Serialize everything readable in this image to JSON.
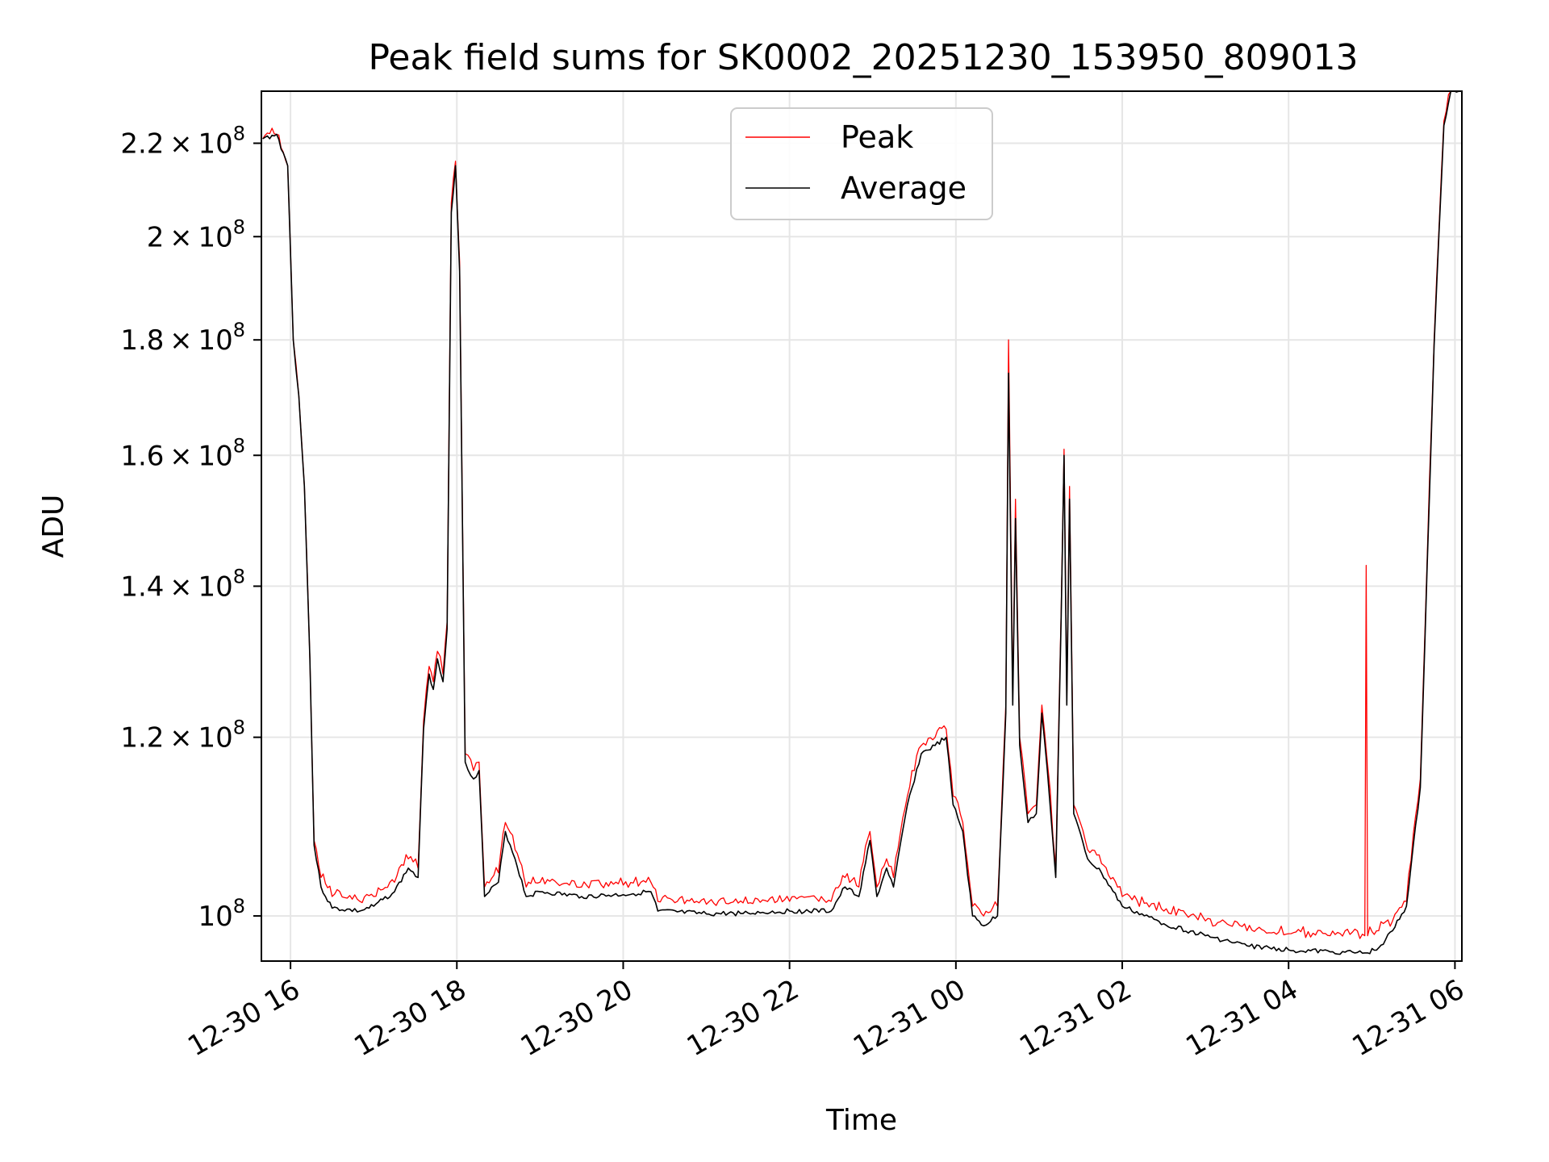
{
  "chart_data": {
    "type": "line",
    "title": "Peak field sums for SK0002_20251230_153950_809013",
    "xlabel": "Time",
    "ylabel": "ADU",
    "yscale": "log",
    "xlim": [
      "2025-12-30 15:39",
      "2025-12-31 06:05"
    ],
    "ylim": [
      95500000.0,
      232000000.0
    ],
    "grid": true,
    "legend_position": "top-center",
    "x_ticks": [
      {
        "value": "2025-12-30 16:00",
        "label": "12-30 16"
      },
      {
        "value": "2025-12-30 18:00",
        "label": "12-30 18"
      },
      {
        "value": "2025-12-30 20:00",
        "label": "12-30 20"
      },
      {
        "value": "2025-12-30 22:00",
        "label": "12-30 22"
      },
      {
        "value": "2025-12-31 00:00",
        "label": "12-31 00"
      },
      {
        "value": "2025-12-31 02:00",
        "label": "12-31 02"
      },
      {
        "value": "2025-12-31 04:00",
        "label": "12-31 04"
      },
      {
        "value": "2025-12-31 06:00",
        "label": "12-31 06"
      }
    ],
    "y_ticks": [
      {
        "value": 100000000,
        "mantissa": "",
        "exp": "8"
      },
      {
        "value": 120000000,
        "mantissa": "1.2",
        "exp": "8"
      },
      {
        "value": 140000000,
        "mantissa": "1.4",
        "exp": "8"
      },
      {
        "value": 160000000,
        "mantissa": "1.6",
        "exp": "8"
      },
      {
        "value": 180000000,
        "mantissa": "1.8",
        "exp": "8"
      },
      {
        "value": 200000000,
        "mantissa": "2",
        "exp": "8"
      },
      {
        "value": 220000000,
        "mantissa": "2.2",
        "exp": "8"
      }
    ],
    "series": [
      {
        "name": "Peak",
        "color": "#ff0000",
        "points": [
          [
            "2025-12-30 15:40",
            221000000.0
          ],
          [
            "2025-12-30 15:50",
            222000000.0
          ],
          [
            "2025-12-30 15:58",
            215000000.0
          ],
          [
            "2025-12-30 16:02",
            180000000.0
          ],
          [
            "2025-12-30 16:06",
            170000000.0
          ],
          [
            "2025-12-30 16:10",
            155000000.0
          ],
          [
            "2025-12-30 16:14",
            130000000.0
          ],
          [
            "2025-12-30 16:17",
            108000000.0
          ],
          [
            "2025-12-30 16:22",
            104000000.0
          ],
          [
            "2025-12-30 16:30",
            102000000.0
          ],
          [
            "2025-12-30 16:50",
            101500000.0
          ],
          [
            "2025-12-30 17:00",
            102000000.0
          ],
          [
            "2025-12-30 17:15",
            103500000.0
          ],
          [
            "2025-12-30 17:25",
            106000000.0
          ],
          [
            "2025-12-30 17:32",
            105000000.0
          ],
          [
            "2025-12-30 17:36",
            122000000.0
          ],
          [
            "2025-12-30 17:40",
            129000000.0
          ],
          [
            "2025-12-30 17:43",
            127000000.0
          ],
          [
            "2025-12-30 17:46",
            131000000.0
          ],
          [
            "2025-12-30 17:50",
            128000000.0
          ],
          [
            "2025-12-30 17:53",
            135000000.0
          ],
          [
            "2025-12-30 17:56",
            207000000.0
          ],
          [
            "2025-12-30 17:59",
            216000000.0
          ],
          [
            "2025-12-30 18:02",
            195000000.0
          ],
          [
            "2025-12-30 18:06",
            118000000.0
          ],
          [
            "2025-12-30 18:12",
            116000000.0
          ],
          [
            "2025-12-30 18:16",
            117000000.0
          ],
          [
            "2025-12-30 18:20",
            103000000.0
          ],
          [
            "2025-12-30 18:30",
            104500000.0
          ],
          [
            "2025-12-30 18:35",
            110000000.0
          ],
          [
            "2025-12-30 18:42",
            107000000.0
          ],
          [
            "2025-12-30 18:50",
            103000000.0
          ],
          [
            "2025-12-30 19:00",
            103500000.0
          ],
          [
            "2025-12-30 19:30",
            103000000.0
          ],
          [
            "2025-12-30 20:00",
            103200000.0
          ],
          [
            "2025-12-30 20:20",
            103500000.0
          ],
          [
            "2025-12-30 20:25",
            101500000.0
          ],
          [
            "2025-12-30 21:00",
            101200000.0
          ],
          [
            "2025-12-30 21:30",
            101300000.0
          ],
          [
            "2025-12-30 22:00",
            101500000.0
          ],
          [
            "2025-12-30 22:30",
            101500000.0
          ],
          [
            "2025-12-30 22:40",
            104000000.0
          ],
          [
            "2025-12-30 22:50",
            103000000.0
          ],
          [
            "2025-12-30 22:58",
            109000000.0
          ],
          [
            "2025-12-30 23:03",
            103000000.0
          ],
          [
            "2025-12-30 23:10",
            106000000.0
          ],
          [
            "2025-12-30 23:15",
            104000000.0
          ],
          [
            "2025-12-30 23:25",
            113000000.0
          ],
          [
            "2025-12-30 23:35",
            119000000.0
          ],
          [
            "2025-12-30 23:45",
            120000000.0
          ],
          [
            "2025-12-30 23:53",
            121000000.0
          ],
          [
            "2025-12-30 23:58",
            113000000.0
          ],
          [
            "2025-12-31 00:05",
            110000000.0
          ],
          [
            "2025-12-31 00:12",
            101000000.0
          ],
          [
            "2025-12-31 00:20",
            100000000.0
          ],
          [
            "2025-12-31 00:30",
            101000000.0
          ],
          [
            "2025-12-31 00:36",
            124000000.0
          ],
          [
            "2025-12-31 00:38",
            180000000.0
          ],
          [
            "2025-12-31 00:41",
            125000000.0
          ],
          [
            "2025-12-31 00:43",
            153000000.0
          ],
          [
            "2025-12-31 00:46",
            120000000.0
          ],
          [
            "2025-12-31 00:52",
            111000000.0
          ],
          [
            "2025-12-31 00:58",
            112000000.0
          ],
          [
            "2025-12-31 01:02",
            124000000.0
          ],
          [
            "2025-12-31 01:06",
            117000000.0
          ],
          [
            "2025-12-31 01:12",
            105000000.0
          ],
          [
            "2025-12-31 01:16",
            137000000.0
          ],
          [
            "2025-12-31 01:18",
            161000000.0
          ],
          [
            "2025-12-31 01:20",
            125000000.0
          ],
          [
            "2025-12-31 01:22",
            155000000.0
          ],
          [
            "2025-12-31 01:25",
            112000000.0
          ],
          [
            "2025-12-31 01:35",
            107000000.0
          ],
          [
            "2025-12-31 01:45",
            105500000.0
          ],
          [
            "2025-12-31 02:00",
            102000000.0
          ],
          [
            "2025-12-31 02:30",
            100500000.0
          ],
          [
            "2025-12-31 03:00",
            99500000.0
          ],
          [
            "2025-12-31 03:30",
            98500000.0
          ],
          [
            "2025-12-31 04:00",
            98200000.0
          ],
          [
            "2025-12-31 04:30",
            98000000.0
          ],
          [
            "2025-12-31 04:55",
            98000000.0
          ],
          [
            "2025-12-31 04:56",
            143000000.0
          ],
          [
            "2025-12-31 04:57",
            98000000.0
          ],
          [
            "2025-12-31 05:05",
            98500000.0
          ],
          [
            "2025-12-31 05:15",
            99500000.0
          ],
          [
            "2025-12-31 05:25",
            101500000.0
          ],
          [
            "2025-12-31 05:35",
            115000000.0
          ],
          [
            "2025-12-31 05:45",
            180000000.0
          ],
          [
            "2025-12-31 05:52",
            225000000.0
          ],
          [
            "2025-12-31 05:57",
            232000000.0
          ],
          [
            "2025-12-31 06:03",
            232000000.0
          ]
        ]
      },
      {
        "name": "Average",
        "color": "#000000",
        "points": [
          [
            "2025-12-30 15:40",
            221000000.0
          ],
          [
            "2025-12-30 15:50",
            222000000.0
          ],
          [
            "2025-12-30 15:58",
            215000000.0
          ],
          [
            "2025-12-30 16:02",
            180000000.0
          ],
          [
            "2025-12-30 16:06",
            170000000.0
          ],
          [
            "2025-12-30 16:10",
            155000000.0
          ],
          [
            "2025-12-30 16:14",
            130000000.0
          ],
          [
            "2025-12-30 16:17",
            107500000.0
          ],
          [
            "2025-12-30 16:22",
            103000000.0
          ],
          [
            "2025-12-30 16:30",
            100800000.0
          ],
          [
            "2025-12-30 16:50",
            100500000.0
          ],
          [
            "2025-12-30 17:00",
            101000000.0
          ],
          [
            "2025-12-30 17:15",
            102500000.0
          ],
          [
            "2025-12-30 17:25",
            105000000.0
          ],
          [
            "2025-12-30 17:32",
            104000000.0
          ],
          [
            "2025-12-30 17:36",
            121000000.0
          ],
          [
            "2025-12-30 17:40",
            128000000.0
          ],
          [
            "2025-12-30 17:43",
            126000000.0
          ],
          [
            "2025-12-30 17:46",
            130000000.0
          ],
          [
            "2025-12-30 17:50",
            127000000.0
          ],
          [
            "2025-12-30 17:53",
            134000000.0
          ],
          [
            "2025-12-30 17:56",
            205000000.0
          ],
          [
            "2025-12-30 17:59",
            215000000.0
          ],
          [
            "2025-12-30 18:02",
            193000000.0
          ],
          [
            "2025-12-30 18:06",
            117000000.0
          ],
          [
            "2025-12-30 18:12",
            115000000.0
          ],
          [
            "2025-12-30 18:16",
            116000000.0
          ],
          [
            "2025-12-30 18:20",
            102000000.0
          ],
          [
            "2025-12-30 18:30",
            103500000.0
          ],
          [
            "2025-12-30 18:35",
            109000000.0
          ],
          [
            "2025-12-30 18:42",
            106000000.0
          ],
          [
            "2025-12-30 18:50",
            102000000.0
          ],
          [
            "2025-12-30 19:00",
            102500000.0
          ],
          [
            "2025-12-30 19:30",
            102000000.0
          ],
          [
            "2025-12-30 20:00",
            102200000.0
          ],
          [
            "2025-12-30 20:20",
            102500000.0
          ],
          [
            "2025-12-30 20:25",
            100500000.0
          ],
          [
            "2025-12-30 21:00",
            100200000.0
          ],
          [
            "2025-12-30 21:30",
            100300000.0
          ],
          [
            "2025-12-30 22:00",
            100500000.0
          ],
          [
            "2025-12-30 22:30",
            100500000.0
          ],
          [
            "2025-12-30 22:40",
            103000000.0
          ],
          [
            "2025-12-30 22:50",
            102000000.0
          ],
          [
            "2025-12-30 22:58",
            108000000.0
          ],
          [
            "2025-12-30 23:03",
            102000000.0
          ],
          [
            "2025-12-30 23:10",
            105000000.0
          ],
          [
            "2025-12-30 23:15",
            103000000.0
          ],
          [
            "2025-12-30 23:25",
            112000000.0
          ],
          [
            "2025-12-30 23:35",
            118000000.0
          ],
          [
            "2025-12-30 23:45",
            119000000.0
          ],
          [
            "2025-12-30 23:53",
            120000000.0
          ],
          [
            "2025-12-30 23:58",
            112000000.0
          ],
          [
            "2025-12-31 00:05",
            109000000.0
          ],
          [
            "2025-12-31 00:12",
            100000000.0
          ],
          [
            "2025-12-31 00:20",
            99000000.0
          ],
          [
            "2025-12-31 00:30",
            100000000.0
          ],
          [
            "2025-12-31 00:36",
            123000000.0
          ],
          [
            "2025-12-31 00:38",
            174000000.0
          ],
          [
            "2025-12-31 00:41",
            124000000.0
          ],
          [
            "2025-12-31 00:43",
            150000000.0
          ],
          [
            "2025-12-31 00:46",
            119000000.0
          ],
          [
            "2025-12-31 00:52",
            110000000.0
          ],
          [
            "2025-12-31 00:58",
            111000000.0
          ],
          [
            "2025-12-31 01:02",
            123000000.0
          ],
          [
            "2025-12-31 01:06",
            116000000.0
          ],
          [
            "2025-12-31 01:12",
            104000000.0
          ],
          [
            "2025-12-31 01:16",
            136000000.0
          ],
          [
            "2025-12-31 01:18",
            160000000.0
          ],
          [
            "2025-12-31 01:20",
            124000000.0
          ],
          [
            "2025-12-31 01:22",
            153000000.0
          ],
          [
            "2025-12-31 01:25",
            111000000.0
          ],
          [
            "2025-12-31 01:35",
            106000000.0
          ],
          [
            "2025-12-31 01:45",
            104500000.0
          ],
          [
            "2025-12-31 02:00",
            101000000.0
          ],
          [
            "2025-12-31 02:30",
            99200000.0
          ],
          [
            "2025-12-31 03:00",
            98000000.0
          ],
          [
            "2025-12-31 03:30",
            97000000.0
          ],
          [
            "2025-12-31 04:00",
            96600000.0
          ],
          [
            "2025-12-31 04:30",
            96400000.0
          ],
          [
            "2025-12-31 04:55",
            96300000.0
          ],
          [
            "2025-12-31 04:56",
            96300000.0
          ],
          [
            "2025-12-31 04:57",
            96300000.0
          ],
          [
            "2025-12-31 05:05",
            96800000.0
          ],
          [
            "2025-12-31 05:15",
            98500000.0
          ],
          [
            "2025-12-31 05:25",
            101000000.0
          ],
          [
            "2025-12-31 05:35",
            114000000.0
          ],
          [
            "2025-12-31 05:45",
            179000000.0
          ],
          [
            "2025-12-31 05:52",
            224000000.0
          ],
          [
            "2025-12-31 05:57",
            232000000.0
          ],
          [
            "2025-12-31 06:03",
            232000000.0
          ]
        ]
      }
    ]
  }
}
